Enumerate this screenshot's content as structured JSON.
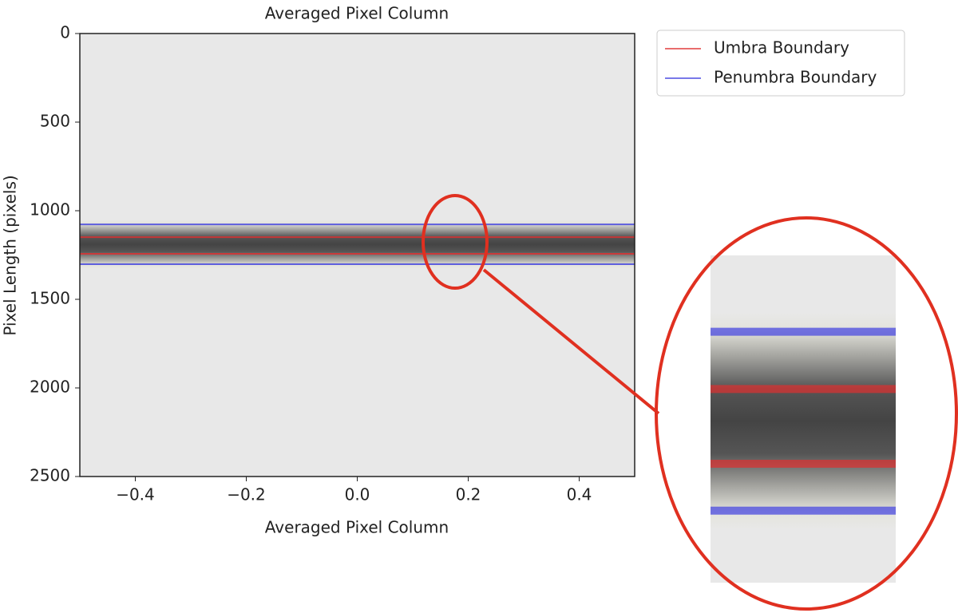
{
  "chart_data": {
    "type": "image",
    "title": "Averaged Pixel Column",
    "x_label": "Averaged Pixel Column",
    "y_label": "Pixel Length (pixels)",
    "xlim": [
      -0.5,
      0.5
    ],
    "xticks": [
      {
        "value": -0.4,
        "label": "−0.4"
      },
      {
        "value": -0.2,
        "label": "−0.2"
      },
      {
        "value": 0,
        "label": "0.0"
      },
      {
        "value": 0.2,
        "label": "0.2"
      },
      {
        "value": 0.4,
        "label": "0.4"
      }
    ],
    "ylim": [
      0,
      2500
    ],
    "yticks": [
      0,
      500,
      1000,
      1500,
      2000,
      2500
    ],
    "y_inverted": true,
    "series": [
      {
        "name": "Umbra Boundary",
        "color": "#e03030",
        "values": [
          1149,
          1243
        ]
      },
      {
        "name": "Penumbra Boundary",
        "color": "#4040e0",
        "values": [
          1077,
          1302
        ]
      }
    ]
  }
}
